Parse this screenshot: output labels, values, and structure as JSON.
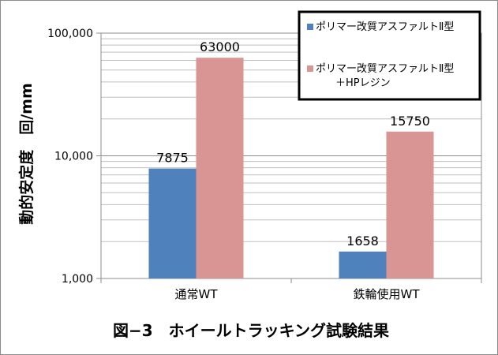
{
  "chart_data": {
    "type": "bar",
    "title": "図−3　ホイールトラッキング試験結果",
    "xlabel": "",
    "ylabel": "動的安定度　回/mm",
    "yscale": "log",
    "ylim": [
      1000,
      100000
    ],
    "yticks": [
      1000,
      10000,
      100000
    ],
    "ytick_labels": [
      "1,000",
      "10,000",
      "100,000"
    ],
    "grid": true,
    "legend_position": "top-right",
    "categories": [
      "通常WT",
      "鉄輪使用WT"
    ],
    "series": [
      {
        "name": "ポリマー改質アスファルトⅡ型",
        "color": "#4f81bd",
        "values": [
          7875,
          1658
        ],
        "labels": [
          "7875",
          "1658"
        ]
      },
      {
        "name": "ポリマー改質アスファルトⅡ型",
        "name_line2": "＋HPレジン",
        "color": "#d99594",
        "values": [
          63000,
          15750
        ],
        "labels": [
          "63000",
          "15750"
        ]
      }
    ]
  }
}
